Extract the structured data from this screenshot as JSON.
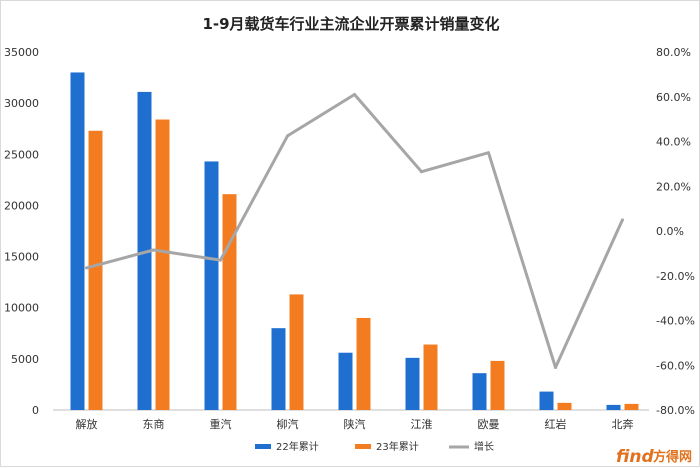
{
  "chart_data": {
    "type": "bar",
    "title": "1-9月载货车行业主流企业开票累计销量变化",
    "categories": [
      "解放",
      "东商",
      "重汽",
      "柳汽",
      "陕汽",
      "江淮",
      "欧曼",
      "红岩",
      "北奔"
    ],
    "series": [
      {
        "name": "22年累计",
        "type": "bar",
        "axis": "left",
        "color": "#1f6fd1",
        "values": [
          33000,
          31100,
          24300,
          8000,
          5600,
          5100,
          3600,
          1800,
          500
        ]
      },
      {
        "name": "23年累计",
        "type": "bar",
        "axis": "left",
        "color": "#f47c20",
        "values": [
          27300,
          28400,
          21100,
          11300,
          9000,
          6400,
          4800,
          700,
          600
        ]
      },
      {
        "name": "增长",
        "type": "line",
        "axis": "right",
        "color": "#a6a6a6",
        "values": [
          -16.5,
          -8.5,
          -13.0,
          42.5,
          61.0,
          26.5,
          35.0,
          -61.0,
          5.0
        ]
      }
    ],
    "y_left": {
      "min": 0,
      "max": 35000,
      "step": 5000,
      "tick_labels": [
        "0",
        "5000",
        "10000",
        "15000",
        "20000",
        "25000",
        "30000",
        "35000"
      ]
    },
    "y_right": {
      "min": -80,
      "max": 80,
      "step": 20,
      "unit": "%",
      "tick_labels": [
        "-80.0%",
        "-60.0%",
        "-40.0%",
        "-20.0%",
        "0.0%",
        "20.0%",
        "40.0%",
        "60.0%",
        "80.0%"
      ]
    },
    "grid": false,
    "legend_position": "bottom"
  },
  "watermark": {
    "logo": "find",
    "text": "方得网"
  }
}
